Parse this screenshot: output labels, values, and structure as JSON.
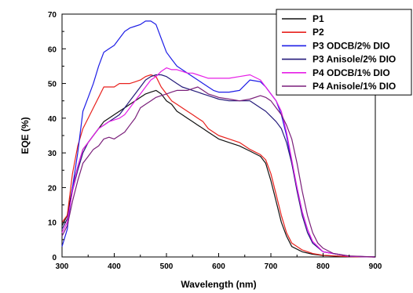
{
  "chart_data": {
    "type": "line",
    "xlabel": "Wavelength (nm)",
    "ylabel": "EQE (%)",
    "xlim": [
      300,
      900
    ],
    "ylim": [
      0,
      70
    ],
    "x_ticks": [
      300,
      400,
      500,
      600,
      700,
      800,
      900
    ],
    "y_ticks": [
      0,
      10,
      20,
      30,
      40,
      50,
      60,
      70
    ],
    "legend_position": "top-right",
    "grid": false,
    "series": [
      {
        "name": "P1",
        "color": "#111111",
        "points": [
          [
            300,
            9
          ],
          [
            310,
            12
          ],
          [
            320,
            20
          ],
          [
            330,
            26
          ],
          [
            340,
            31
          ],
          [
            350,
            33
          ],
          [
            360,
            35
          ],
          [
            370,
            37
          ],
          [
            380,
            39
          ],
          [
            390,
            40
          ],
          [
            400,
            41
          ],
          [
            410,
            42
          ],
          [
            420,
            43
          ],
          [
            430,
            44
          ],
          [
            440,
            45
          ],
          [
            450,
            46
          ],
          [
            460,
            47
          ],
          [
            470,
            47.5
          ],
          [
            480,
            48
          ],
          [
            490,
            47
          ],
          [
            500,
            45
          ],
          [
            510,
            44
          ],
          [
            520,
            42
          ],
          [
            530,
            41
          ],
          [
            540,
            40
          ],
          [
            550,
            39
          ],
          [
            560,
            38
          ],
          [
            570,
            37
          ],
          [
            580,
            36
          ],
          [
            590,
            35
          ],
          [
            600,
            34
          ],
          [
            620,
            33
          ],
          [
            640,
            32
          ],
          [
            660,
            30.5
          ],
          [
            680,
            29
          ],
          [
            690,
            27
          ],
          [
            700,
            22
          ],
          [
            710,
            16
          ],
          [
            720,
            10
          ],
          [
            730,
            6
          ],
          [
            740,
            3
          ],
          [
            760,
            1.5
          ],
          [
            780,
            0.8
          ],
          [
            800,
            0.4
          ],
          [
            850,
            0.1
          ],
          [
            900,
            0
          ]
        ]
      },
      {
        "name": "P2",
        "color": "#e8211d",
        "points": [
          [
            300,
            10
          ],
          [
            310,
            12
          ],
          [
            320,
            24
          ],
          [
            330,
            32
          ],
          [
            340,
            37
          ],
          [
            350,
            40
          ],
          [
            360,
            43
          ],
          [
            370,
            46
          ],
          [
            380,
            49
          ],
          [
            390,
            49
          ],
          [
            400,
            49
          ],
          [
            410,
            50
          ],
          [
            420,
            50
          ],
          [
            430,
            50
          ],
          [
            440,
            50.5
          ],
          [
            450,
            51
          ],
          [
            460,
            52
          ],
          [
            470,
            52.5
          ],
          [
            480,
            52
          ],
          [
            490,
            49
          ],
          [
            500,
            47
          ],
          [
            510,
            45
          ],
          [
            520,
            44
          ],
          [
            530,
            43
          ],
          [
            540,
            42
          ],
          [
            550,
            41
          ],
          [
            560,
            40
          ],
          [
            570,
            39
          ],
          [
            580,
            37
          ],
          [
            590,
            36
          ],
          [
            600,
            35
          ],
          [
            620,
            34
          ],
          [
            640,
            33
          ],
          [
            660,
            31
          ],
          [
            680,
            29.5
          ],
          [
            690,
            28
          ],
          [
            700,
            24
          ],
          [
            710,
            18
          ],
          [
            720,
            12
          ],
          [
            730,
            7
          ],
          [
            740,
            4
          ],
          [
            760,
            2
          ],
          [
            780,
            1
          ],
          [
            800,
            0.5
          ],
          [
            850,
            0.1
          ],
          [
            900,
            0
          ]
        ]
      },
      {
        "name": "P3 ODCB/2% DIO",
        "color": "#1e1ee6",
        "points": [
          [
            300,
            3
          ],
          [
            310,
            8
          ],
          [
            320,
            20
          ],
          [
            330,
            30
          ],
          [
            340,
            42
          ],
          [
            350,
            46
          ],
          [
            360,
            50
          ],
          [
            370,
            55
          ],
          [
            380,
            59
          ],
          [
            390,
            60
          ],
          [
            400,
            61
          ],
          [
            410,
            63
          ],
          [
            420,
            65
          ],
          [
            430,
            66
          ],
          [
            440,
            66.5
          ],
          [
            450,
            67
          ],
          [
            460,
            68
          ],
          [
            470,
            68
          ],
          [
            480,
            67
          ],
          [
            490,
            63
          ],
          [
            500,
            59
          ],
          [
            510,
            57
          ],
          [
            520,
            55
          ],
          [
            530,
            54
          ],
          [
            540,
            53
          ],
          [
            550,
            52
          ],
          [
            560,
            51
          ],
          [
            570,
            50
          ],
          [
            580,
            49
          ],
          [
            590,
            48
          ],
          [
            600,
            47.5
          ],
          [
            620,
            47.5
          ],
          [
            640,
            48
          ],
          [
            660,
            51
          ],
          [
            680,
            50.5
          ],
          [
            690,
            49
          ],
          [
            700,
            47
          ],
          [
            710,
            45
          ],
          [
            720,
            41
          ],
          [
            730,
            35
          ],
          [
            740,
            27
          ],
          [
            750,
            20
          ],
          [
            760,
            13
          ],
          [
            770,
            8
          ],
          [
            780,
            4
          ],
          [
            800,
            1.5
          ],
          [
            850,
            0.2
          ],
          [
            900,
            0
          ]
        ]
      },
      {
        "name": "P3 Anisole/2% DIO",
        "color": "#241a7a",
        "points": [
          [
            300,
            8
          ],
          [
            310,
            11
          ],
          [
            320,
            19
          ],
          [
            330,
            25
          ],
          [
            340,
            30
          ],
          [
            350,
            33
          ],
          [
            360,
            35
          ],
          [
            370,
            37
          ],
          [
            380,
            38
          ],
          [
            390,
            39
          ],
          [
            400,
            40
          ],
          [
            410,
            41
          ],
          [
            420,
            43
          ],
          [
            430,
            45
          ],
          [
            440,
            47
          ],
          [
            450,
            49
          ],
          [
            460,
            51
          ],
          [
            470,
            52
          ],
          [
            480,
            52.5
          ],
          [
            490,
            52.5
          ],
          [
            500,
            52
          ],
          [
            510,
            51
          ],
          [
            520,
            50
          ],
          [
            530,
            49
          ],
          [
            540,
            48.5
          ],
          [
            550,
            48
          ],
          [
            560,
            47.5
          ],
          [
            570,
            47
          ],
          [
            580,
            46.5
          ],
          [
            590,
            46
          ],
          [
            600,
            45.5
          ],
          [
            620,
            45
          ],
          [
            640,
            45
          ],
          [
            660,
            45
          ],
          [
            680,
            43
          ],
          [
            690,
            42
          ],
          [
            700,
            40.5
          ],
          [
            710,
            39
          ],
          [
            720,
            37
          ],
          [
            730,
            33
          ],
          [
            740,
            27
          ],
          [
            750,
            19
          ],
          [
            760,
            12
          ],
          [
            770,
            7
          ],
          [
            780,
            4
          ],
          [
            800,
            1.5
          ],
          [
            850,
            0.2
          ],
          [
            900,
            0
          ]
        ]
      },
      {
        "name": "P4 ODCB/1% DIO",
        "color": "#e61ee6",
        "points": [
          [
            300,
            7
          ],
          [
            310,
            10
          ],
          [
            320,
            19
          ],
          [
            330,
            26
          ],
          [
            340,
            31
          ],
          [
            350,
            33
          ],
          [
            360,
            35
          ],
          [
            370,
            37
          ],
          [
            380,
            38
          ],
          [
            390,
            39
          ],
          [
            400,
            39.5
          ],
          [
            410,
            40
          ],
          [
            420,
            41
          ],
          [
            430,
            43
          ],
          [
            440,
            45
          ],
          [
            450,
            47
          ],
          [
            460,
            49
          ],
          [
            470,
            51
          ],
          [
            480,
            52
          ],
          [
            490,
            53.5
          ],
          [
            500,
            54.5
          ],
          [
            510,
            54
          ],
          [
            520,
            54
          ],
          [
            530,
            53.5
          ],
          [
            540,
            53
          ],
          [
            550,
            53
          ],
          [
            560,
            52.5
          ],
          [
            570,
            52
          ],
          [
            580,
            51.5
          ],
          [
            590,
            51.5
          ],
          [
            600,
            51.5
          ],
          [
            620,
            51.5
          ],
          [
            640,
            52
          ],
          [
            660,
            52.5
          ],
          [
            680,
            51
          ],
          [
            690,
            49
          ],
          [
            700,
            47
          ],
          [
            710,
            45
          ],
          [
            720,
            42
          ],
          [
            730,
            36
          ],
          [
            740,
            28
          ],
          [
            750,
            20
          ],
          [
            760,
            13
          ],
          [
            770,
            8
          ],
          [
            780,
            4.5
          ],
          [
            800,
            1.5
          ],
          [
            850,
            0.2
          ],
          [
            900,
            0
          ]
        ]
      },
      {
        "name": "P4 Anisole/1% DIO",
        "color": "#7a1f7a",
        "points": [
          [
            300,
            6
          ],
          [
            310,
            9
          ],
          [
            320,
            16
          ],
          [
            330,
            22
          ],
          [
            340,
            27
          ],
          [
            350,
            29
          ],
          [
            360,
            31
          ],
          [
            370,
            32
          ],
          [
            380,
            34
          ],
          [
            390,
            34.5
          ],
          [
            400,
            34
          ],
          [
            410,
            35
          ],
          [
            420,
            36
          ],
          [
            430,
            38
          ],
          [
            440,
            40
          ],
          [
            450,
            43
          ],
          [
            460,
            44
          ],
          [
            470,
            45
          ],
          [
            480,
            46
          ],
          [
            490,
            46.5
          ],
          [
            500,
            47
          ],
          [
            510,
            47.5
          ],
          [
            520,
            48
          ],
          [
            530,
            48
          ],
          [
            540,
            48
          ],
          [
            550,
            48.5
          ],
          [
            560,
            49
          ],
          [
            570,
            48
          ],
          [
            580,
            47
          ],
          [
            590,
            46.5
          ],
          [
            600,
            46
          ],
          [
            620,
            45.5
          ],
          [
            640,
            45
          ],
          [
            660,
            45.5
          ],
          [
            680,
            46.5
          ],
          [
            690,
            46
          ],
          [
            700,
            45
          ],
          [
            710,
            43
          ],
          [
            720,
            41
          ],
          [
            730,
            38
          ],
          [
            740,
            34
          ],
          [
            750,
            27
          ],
          [
            760,
            19
          ],
          [
            770,
            12
          ],
          [
            780,
            7
          ],
          [
            790,
            4
          ],
          [
            800,
            2.5
          ],
          [
            820,
            1
          ],
          [
            850,
            0.3
          ],
          [
            900,
            0
          ]
        ]
      }
    ]
  }
}
